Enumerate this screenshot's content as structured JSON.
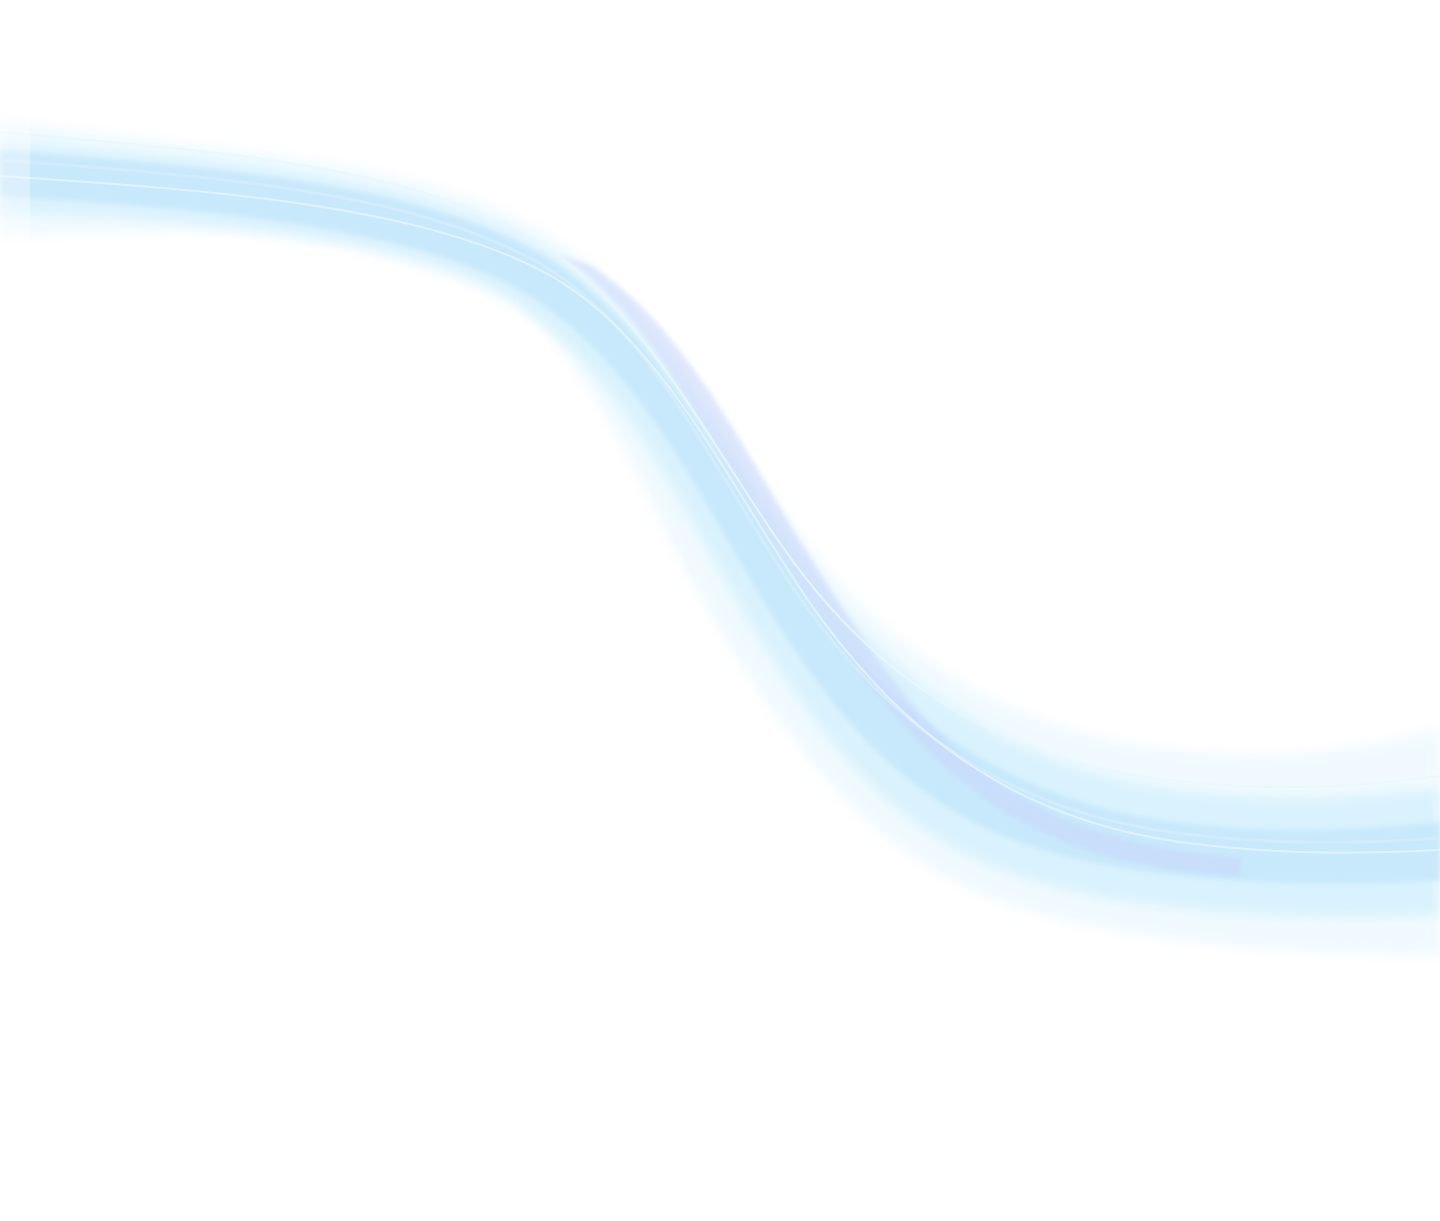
{
  "background": {
    "color": "#ffffff"
  },
  "decoration": {
    "name": "flowing-light-blue-wave",
    "colors": {
      "light_cyan": "#d6f1fd",
      "sky_blue": "#bfe4fa",
      "periwinkle": "#c9d6fb",
      "pale_edge": "#eaf8fe"
    }
  }
}
